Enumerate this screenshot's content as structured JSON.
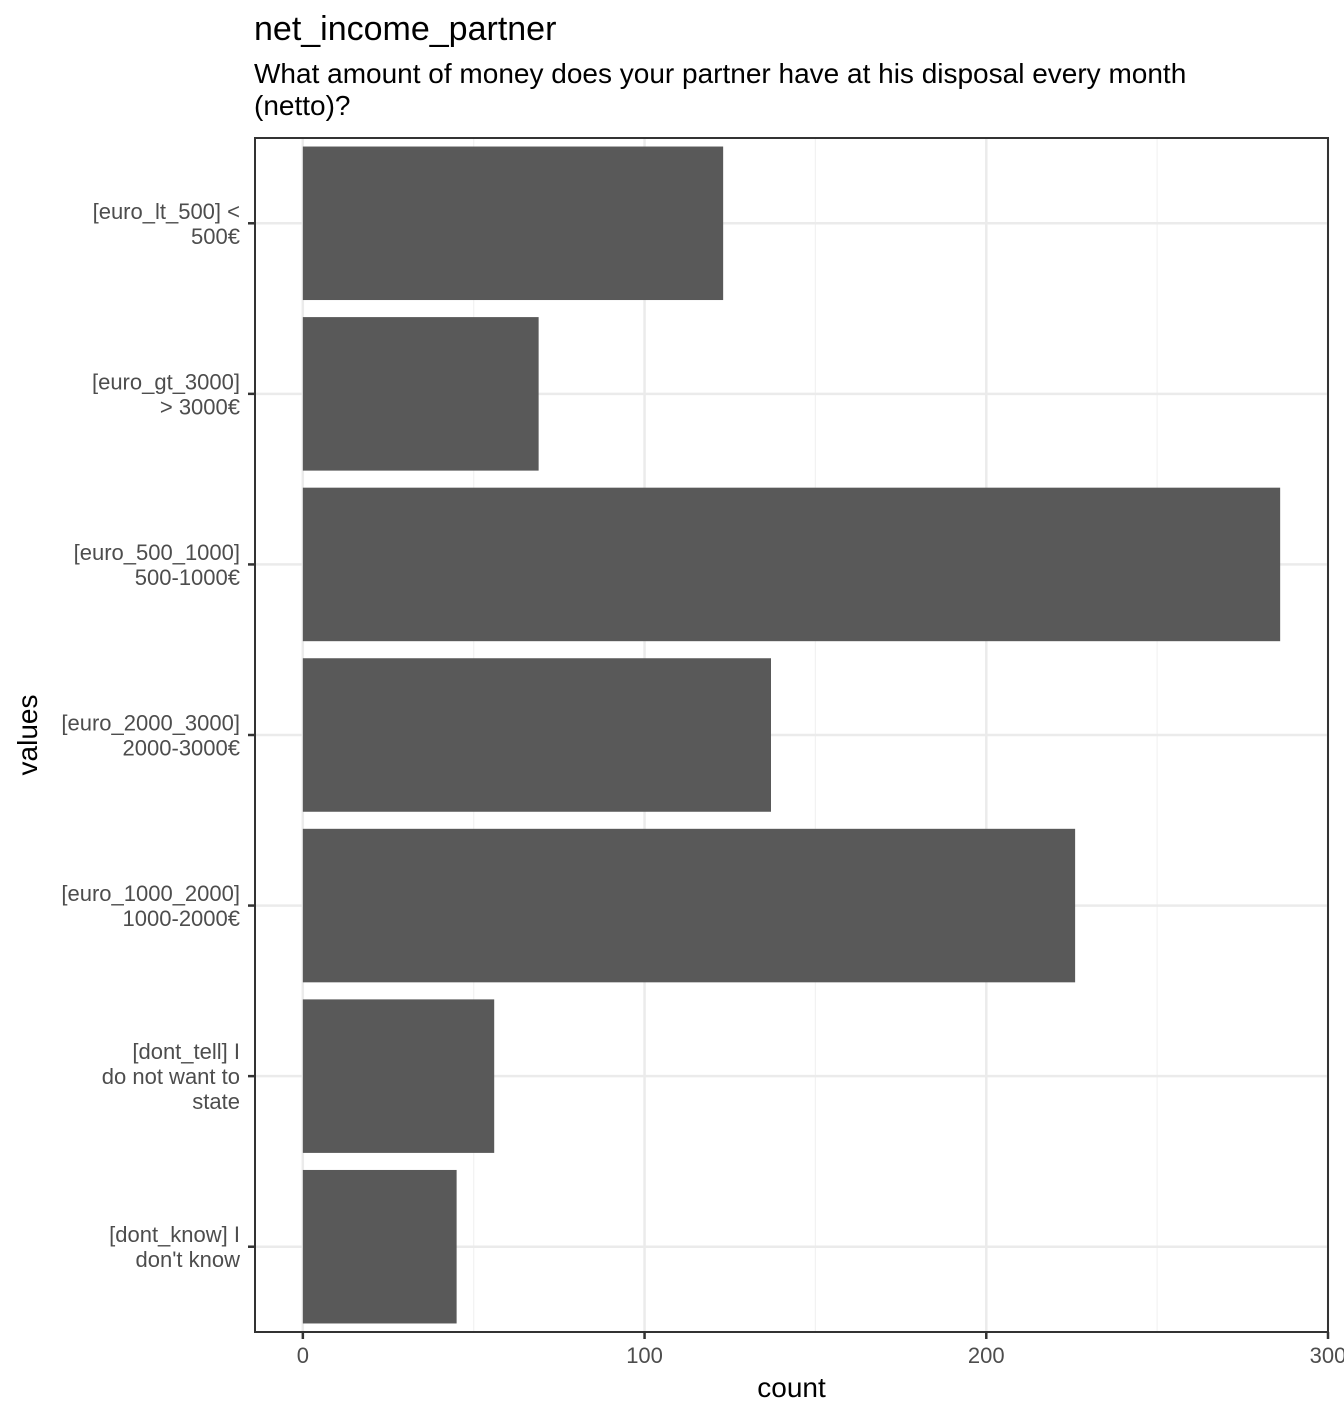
{
  "chart_data": {
    "type": "bar",
    "orientation": "horizontal",
    "title": "net_income_partner",
    "subtitle": "What amount of money does your partner have at his disposal every month (netto)?",
    "xlabel": "count",
    "ylabel": "values",
    "xlim": [
      -14,
      300
    ],
    "xticks": [
      0,
      100,
      200,
      300
    ],
    "grid": true,
    "categories": [
      [
        "[euro_lt_500] <",
        "500€"
      ],
      [
        "[euro_gt_3000]",
        "> 3000€"
      ],
      [
        "[euro_500_1000]",
        "500-1000€"
      ],
      [
        "[euro_2000_3000]",
        "2000-3000€"
      ],
      [
        "[euro_1000_2000]",
        "1000-2000€"
      ],
      [
        "[dont_tell] I",
        "do not want to",
        "state"
      ],
      [
        "[dont_know] I",
        "don't know"
      ]
    ],
    "values": [
      123,
      69,
      286,
      137,
      226,
      56,
      45
    ],
    "bar_color": "#595959"
  }
}
